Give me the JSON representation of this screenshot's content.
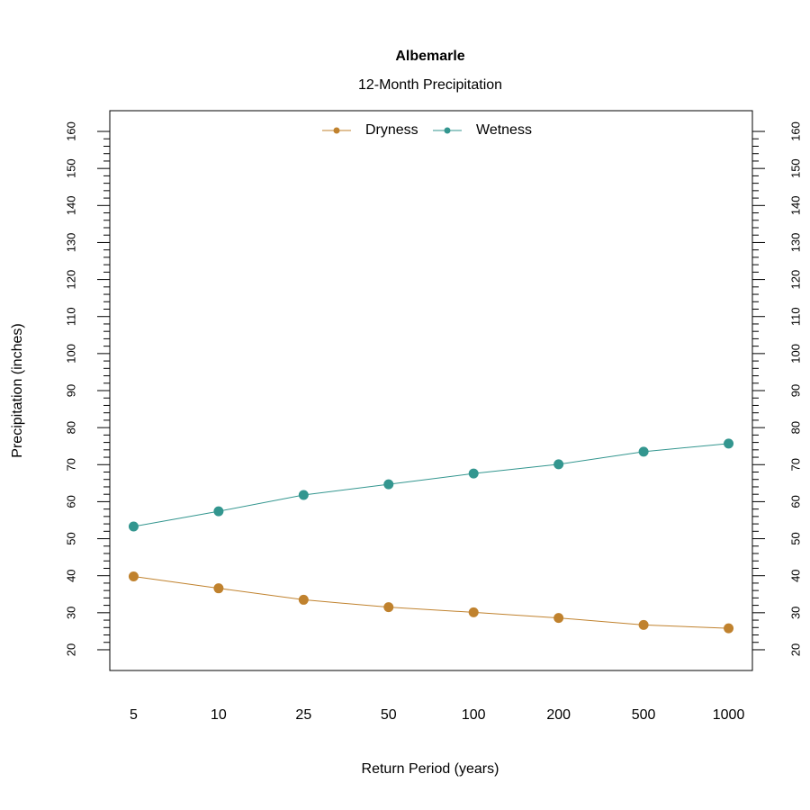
{
  "chart_data": {
    "type": "line",
    "title": "Albemarle",
    "subtitle": "12-Month Precipitation",
    "x_label": "Return Period (years)",
    "y_label": "Precipitation (inches)",
    "categories": [
      "5",
      "10",
      "25",
      "50",
      "100",
      "200",
      "500",
      "1000"
    ],
    "series": [
      {
        "name": "Dryness",
        "color": "#c0822e",
        "values": [
          39.8,
          36.6,
          33.5,
          31.5,
          30.1,
          28.6,
          26.7,
          25.8
        ]
      },
      {
        "name": "Wetness",
        "color": "#33968f",
        "values": [
          53.3,
          57.4,
          61.8,
          64.7,
          67.6,
          70.1,
          73.5,
          75.7
        ]
      }
    ],
    "ylim": [
      14.4,
      165.6
    ],
    "yticks": [
      20,
      30,
      40,
      50,
      60,
      70,
      80,
      90,
      100,
      110,
      120,
      130,
      140,
      150,
      160
    ],
    "yminorticks": [
      22,
      24,
      26,
      28,
      32,
      34,
      36,
      38,
      42,
      44,
      46,
      48,
      52,
      54,
      56,
      58,
      62,
      64,
      66,
      68,
      72,
      74,
      76,
      78,
      82,
      84,
      86,
      88,
      92,
      94,
      96,
      98,
      102,
      104,
      106,
      108,
      112,
      114,
      116,
      118,
      122,
      124,
      126,
      128,
      132,
      134,
      136,
      138,
      142,
      144,
      146,
      148,
      152,
      154,
      156,
      158
    ],
    "legend": "top",
    "grid": false
  }
}
